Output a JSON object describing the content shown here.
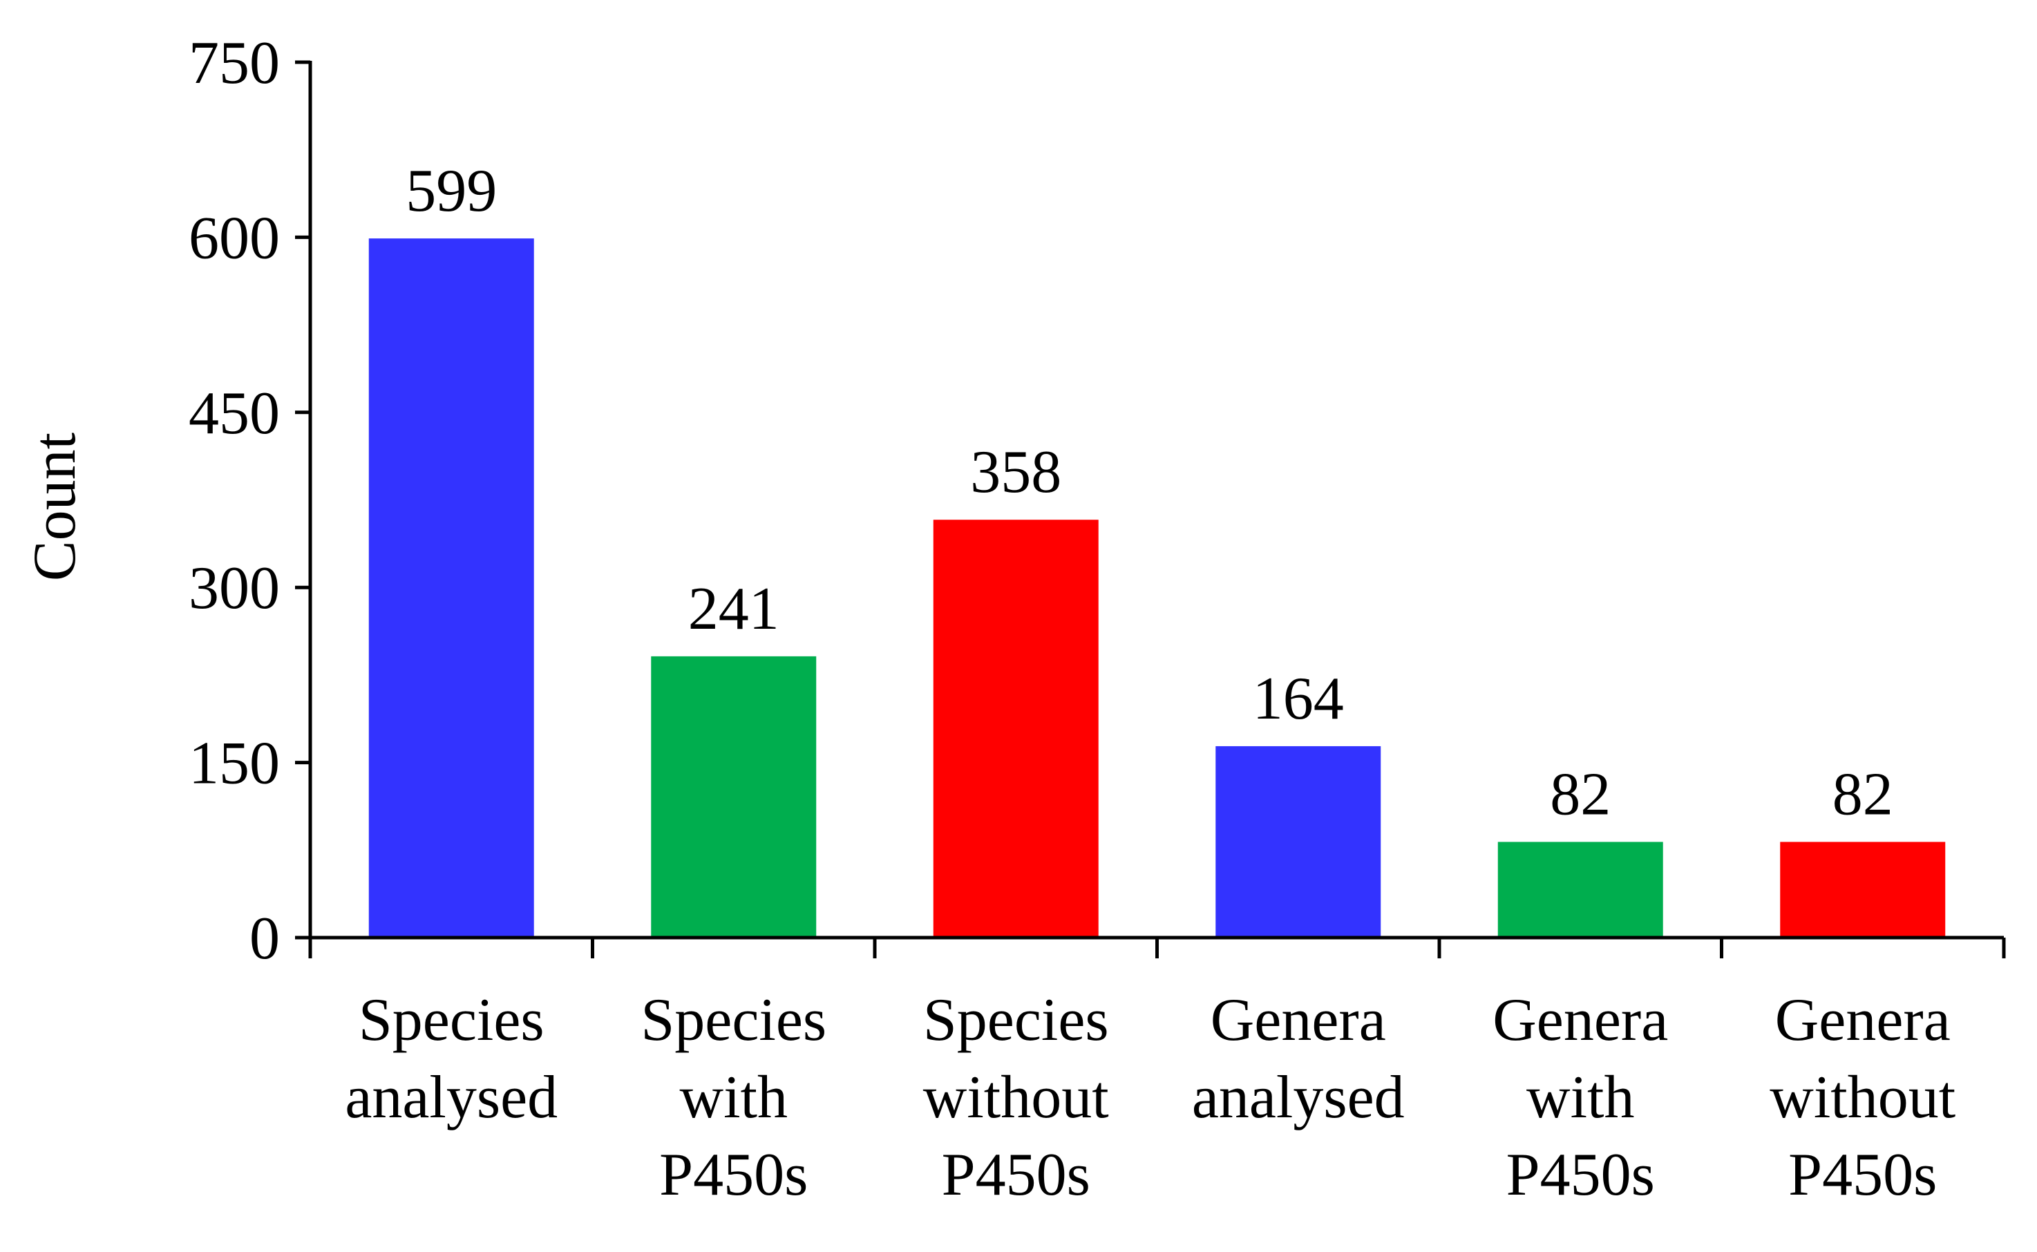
{
  "chart_data": {
    "type": "bar",
    "title": "",
    "xlabel": "",
    "ylabel": "Count",
    "ylim": [
      0,
      750
    ],
    "yticks": [
      0,
      150,
      300,
      450,
      600,
      750
    ],
    "grid": false,
    "legend": "none",
    "categories": [
      [
        "Species",
        "analysed"
      ],
      [
        "Species",
        "with",
        "P450s"
      ],
      [
        "Species",
        "without",
        "P450s"
      ],
      [
        "Genera",
        "analysed"
      ],
      [
        "Genera",
        "with",
        "P450s"
      ],
      [
        "Genera",
        "without",
        "P450s"
      ]
    ],
    "values": [
      599,
      241,
      358,
      164,
      82,
      82
    ],
    "data_labels": [
      "599",
      "241",
      "358",
      "164",
      "82",
      "82"
    ],
    "colors": [
      "#3333ff",
      "#00ae4e",
      "#ff0000",
      "#3333ff",
      "#00ae4e",
      "#ff0000"
    ]
  }
}
